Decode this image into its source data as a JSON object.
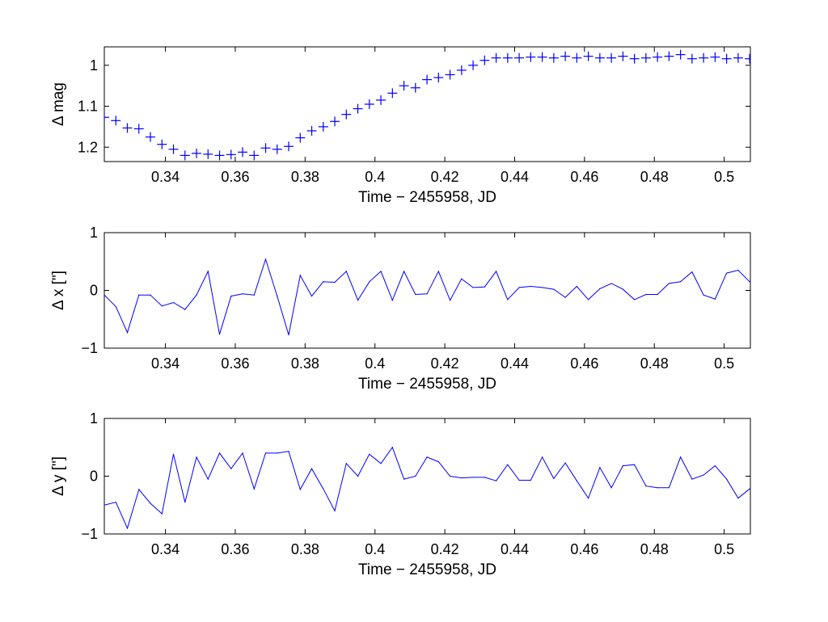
{
  "chart_data": [
    {
      "type": "scatter",
      "marker": "+",
      "color": "#0000ff",
      "xlabel": "Time − 2455958, JD",
      "ylabel": "Δ mag",
      "xlim": [
        0.3225,
        0.5075
      ],
      "ylim": [
        1.235,
        0.955
      ],
      "y_reversed": true,
      "xticks": [
        0.34,
        0.36,
        0.38,
        0.4,
        0.42,
        0.44,
        0.46,
        0.48,
        0.5
      ],
      "xtick_labels": [
        "0.34",
        "0.36",
        "0.38",
        "0.4",
        "0.42",
        "0.44",
        "0.46",
        "0.48",
        "0.5"
      ],
      "yticks": [
        1,
        1.1,
        1.2
      ],
      "ytick_labels": [
        "1",
        "1.1",
        "1.2"
      ],
      "grid": false,
      "series": [
        {
          "x": [
            0.3225,
            0.3258,
            0.3291,
            0.3324,
            0.3357,
            0.339,
            0.3423,
            0.3456,
            0.3489,
            0.3522,
            0.3555,
            0.3588,
            0.3621,
            0.3654,
            0.3687,
            0.372,
            0.3753,
            0.3786,
            0.3819,
            0.3852,
            0.3885,
            0.3918,
            0.3951,
            0.3984,
            0.4017,
            0.405,
            0.4083,
            0.4116,
            0.4149,
            0.4182,
            0.4215,
            0.4248,
            0.4281,
            0.4314,
            0.4347,
            0.438,
            0.4413,
            0.4446,
            0.4479,
            0.4512,
            0.4545,
            0.4578,
            0.4611,
            0.4644,
            0.4677,
            0.471,
            0.4743,
            0.4776,
            0.4809,
            0.4842,
            0.4875,
            0.4908,
            0.4941,
            0.4974,
            0.5007,
            0.504,
            0.5073
          ],
          "y": [
            1.127,
            1.135,
            1.153,
            1.155,
            1.175,
            1.193,
            1.205,
            1.22,
            1.215,
            1.217,
            1.22,
            1.218,
            1.212,
            1.22,
            1.202,
            1.205,
            1.198,
            1.177,
            1.16,
            1.15,
            1.137,
            1.12,
            1.106,
            1.095,
            1.085,
            1.068,
            1.05,
            1.055,
            1.035,
            1.03,
            1.023,
            1.012,
            1.0,
            0.988,
            0.982,
            0.982,
            0.982,
            0.98,
            0.98,
            0.982,
            0.978,
            0.982,
            0.978,
            0.982,
            0.982,
            0.978,
            0.984,
            0.982,
            0.98,
            0.978,
            0.974,
            0.984,
            0.982,
            0.98,
            0.984,
            0.982,
            0.984
          ]
        }
      ]
    },
    {
      "type": "line",
      "color": "#0000ff",
      "xlabel": "Time − 2455958, JD",
      "ylabel": "Δ x [\"]",
      "xlim": [
        0.3225,
        0.5075
      ],
      "ylim": [
        -1,
        1
      ],
      "xticks": [
        0.34,
        0.36,
        0.38,
        0.4,
        0.42,
        0.44,
        0.46,
        0.48,
        0.5
      ],
      "xtick_labels": [
        "0.34",
        "0.36",
        "0.38",
        "0.4",
        "0.42",
        "0.44",
        "0.46",
        "0.48",
        "0.5"
      ],
      "yticks": [
        -1,
        0,
        1
      ],
      "ytick_labels": [
        "−1",
        "0",
        "1"
      ],
      "grid": false,
      "series": [
        {
          "x": [
            0.3225,
            0.3258,
            0.3291,
            0.3324,
            0.3357,
            0.339,
            0.3423,
            0.3456,
            0.3489,
            0.3522,
            0.3555,
            0.3588,
            0.3621,
            0.3654,
            0.3687,
            0.372,
            0.3753,
            0.3786,
            0.3819,
            0.3852,
            0.3885,
            0.3918,
            0.3951,
            0.3984,
            0.4017,
            0.405,
            0.4083,
            0.4116,
            0.4149,
            0.4182,
            0.4215,
            0.4248,
            0.4281,
            0.4314,
            0.4347,
            0.438,
            0.4413,
            0.4446,
            0.4479,
            0.4512,
            0.4545,
            0.4578,
            0.4611,
            0.4644,
            0.4677,
            0.471,
            0.4743,
            0.4776,
            0.4809,
            0.4842,
            0.4875,
            0.4908,
            0.4941,
            0.4974,
            0.5007,
            0.504,
            0.5073
          ],
          "y": [
            -0.08,
            -0.28,
            -0.73,
            -0.08,
            -0.08,
            -0.27,
            -0.21,
            -0.33,
            -0.08,
            0.33,
            -0.76,
            -0.1,
            -0.06,
            -0.08,
            0.54,
            -0.1,
            -0.77,
            0.26,
            -0.1,
            0.15,
            0.14,
            0.33,
            -0.17,
            0.15,
            0.33,
            -0.17,
            0.33,
            -0.07,
            -0.06,
            0.33,
            -0.17,
            0.2,
            0.05,
            0.06,
            0.33,
            -0.16,
            0.05,
            0.07,
            0.05,
            0.02,
            -0.12,
            0.07,
            -0.16,
            0.03,
            0.12,
            0.02,
            -0.16,
            -0.07,
            -0.07,
            0.12,
            0.15,
            0.32,
            -0.08,
            -0.15,
            0.3,
            0.35,
            0.15
          ]
        }
      ]
    },
    {
      "type": "line",
      "color": "#0000ff",
      "xlabel": "Time − 2455958, JD",
      "ylabel": "Δ y [\"]",
      "xlim": [
        0.3225,
        0.5075
      ],
      "ylim": [
        -1,
        1
      ],
      "xticks": [
        0.34,
        0.36,
        0.38,
        0.4,
        0.42,
        0.44,
        0.46,
        0.48,
        0.5
      ],
      "xtick_labels": [
        "0.34",
        "0.36",
        "0.38",
        "0.4",
        "0.42",
        "0.44",
        "0.46",
        "0.48",
        "0.5"
      ],
      "yticks": [
        -1,
        0,
        1
      ],
      "ytick_labels": [
        "−1",
        "0",
        "1"
      ],
      "grid": false,
      "series": [
        {
          "x": [
            0.3225,
            0.3258,
            0.3291,
            0.3324,
            0.3357,
            0.339,
            0.3423,
            0.3456,
            0.3489,
            0.3522,
            0.3555,
            0.3588,
            0.3621,
            0.3654,
            0.3687,
            0.372,
            0.3753,
            0.3786,
            0.3819,
            0.3852,
            0.3885,
            0.3918,
            0.3951,
            0.3984,
            0.4017,
            0.405,
            0.4083,
            0.4116,
            0.4149,
            0.4182,
            0.4215,
            0.4248,
            0.4281,
            0.4314,
            0.4347,
            0.438,
            0.4413,
            0.4446,
            0.4479,
            0.4512,
            0.4545,
            0.4578,
            0.4611,
            0.4644,
            0.4677,
            0.471,
            0.4743,
            0.4776,
            0.4809,
            0.4842,
            0.4875,
            0.4908,
            0.4941,
            0.4974,
            0.5007,
            0.504,
            0.5073
          ],
          "y": [
            -0.5,
            -0.45,
            -0.9,
            -0.23,
            -0.47,
            -0.65,
            0.38,
            -0.45,
            0.33,
            -0.05,
            0.4,
            0.13,
            0.4,
            -0.22,
            0.4,
            0.4,
            0.43,
            -0.23,
            0.13,
            -0.22,
            -0.6,
            0.22,
            0.0,
            0.38,
            0.22,
            0.5,
            -0.05,
            0.0,
            0.33,
            0.25,
            0.0,
            -0.03,
            -0.02,
            -0.02,
            -0.08,
            0.2,
            -0.07,
            -0.07,
            0.33,
            -0.04,
            0.23,
            -0.08,
            -0.38,
            0.15,
            -0.2,
            0.18,
            0.2,
            -0.17,
            -0.2,
            -0.2,
            0.33,
            -0.05,
            0.02,
            0.18,
            -0.05,
            -0.38,
            -0.22
          ]
        }
      ]
    }
  ]
}
